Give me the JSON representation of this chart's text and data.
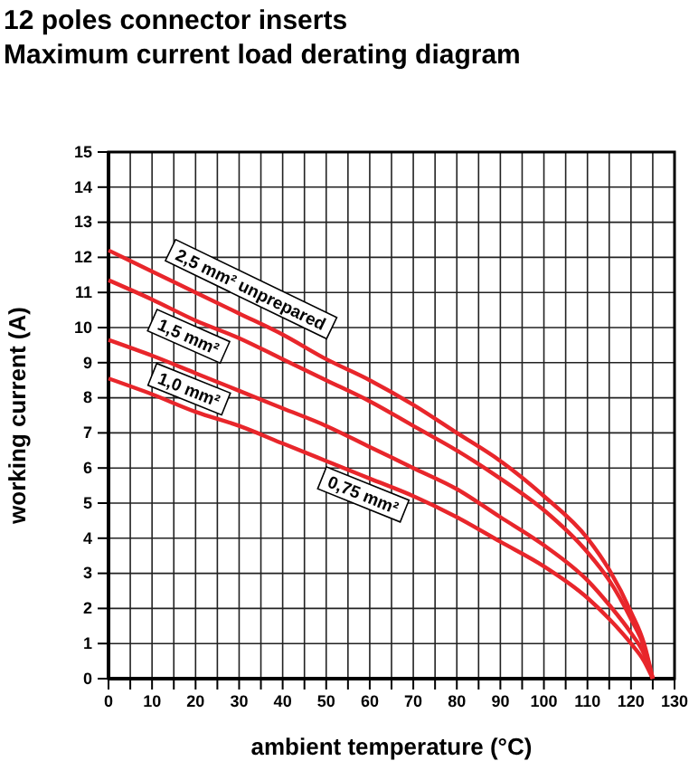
{
  "chart_data": {
    "type": "line",
    "title": "12 poles connector inserts",
    "subtitle": "Maximum current load derating diagram",
    "xlabel": "ambient temperature (°C)",
    "ylabel": "working current (A)",
    "xlim": [
      0,
      130
    ],
    "ylim": [
      0,
      15
    ],
    "xticks": [
      0,
      {
        "value": 5,
        "label": null
      },
      10,
      {
        "value": 15,
        "label": null
      },
      20,
      {
        "value": 25,
        "label": null
      },
      30,
      {
        "value": 35,
        "label": null
      },
      40,
      {
        "value": 45,
        "label": null
      },
      50,
      {
        "value": 55,
        "label": null
      },
      60,
      {
        "value": 65,
        "label": null
      },
      70,
      {
        "value": 75,
        "label": null
      },
      80,
      {
        "value": 85,
        "label": null
      },
      90,
      {
        "value": 95,
        "label": null
      },
      100,
      {
        "value": 105,
        "label": null
      },
      110,
      {
        "value": 115,
        "label": null
      },
      120,
      {
        "value": 125,
        "label": null
      },
      130
    ],
    "yticks": [
      0,
      1,
      2,
      3,
      4,
      5,
      6,
      7,
      8,
      9,
      10,
      11,
      12,
      13,
      14,
      15
    ],
    "grid": true,
    "marker": "none",
    "line_style": "solid",
    "x": [
      0,
      10,
      20,
      30,
      40,
      50,
      60,
      70,
      80,
      90,
      100,
      110,
      115,
      120,
      123,
      125
    ],
    "series": [
      {
        "name": "2,5 mm² unprepared",
        "color": "#e8262b",
        "values": [
          12.2,
          11.6,
          11.0,
          10.4,
          9.8,
          9.1,
          8.5,
          7.8,
          7.0,
          6.2,
          5.2,
          4.0,
          3.1,
          1.9,
          1.0,
          0
        ]
      },
      {
        "name": "1,5 mm²",
        "color": "#e8262b",
        "values": [
          11.35,
          10.8,
          10.2,
          9.7,
          9.1,
          8.5,
          7.9,
          7.2,
          6.5,
          5.7,
          4.8,
          3.6,
          2.8,
          1.7,
          0.9,
          0
        ]
      },
      {
        "name": "1,0 mm²",
        "color": "#e8262b",
        "values": [
          9.65,
          9.2,
          8.7,
          8.2,
          7.7,
          7.2,
          6.6,
          6.0,
          5.4,
          4.6,
          3.8,
          2.8,
          2.1,
          1.3,
          0.7,
          0
        ]
      },
      {
        "name": "0,75 mm²",
        "color": "#e8262b",
        "values": [
          8.55,
          8.1,
          7.6,
          7.2,
          6.7,
          6.2,
          5.7,
          5.2,
          4.6,
          3.9,
          3.2,
          2.3,
          1.7,
          1.0,
          0.5,
          0
        ]
      }
    ]
  }
}
